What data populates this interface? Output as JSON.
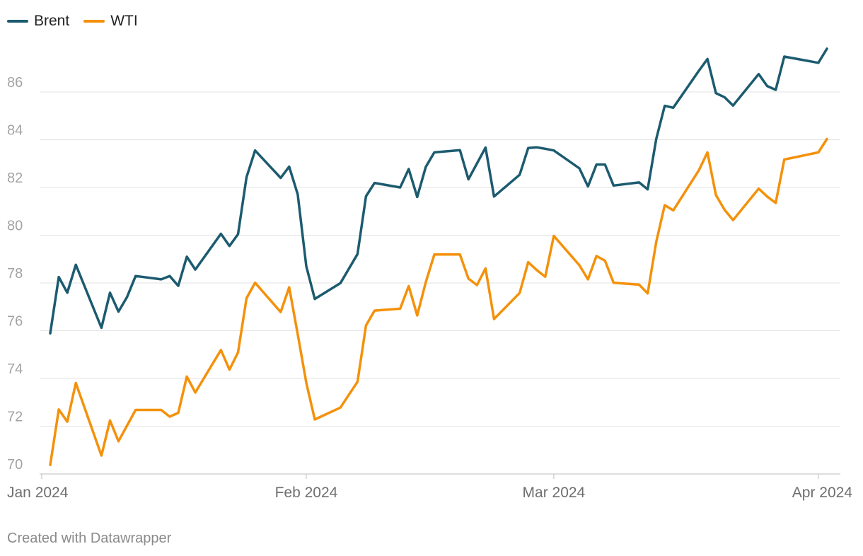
{
  "legend": [
    {
      "name": "Brent",
      "color": "#1c5b6f"
    },
    {
      "name": "WTI",
      "color": "#f4910a"
    }
  ],
  "footer": {
    "credit": "Created with Datawrapper"
  },
  "chart_data": {
    "type": "line",
    "title": "",
    "xlabel": "",
    "ylabel": "",
    "ylim": [
      70,
      88
    ],
    "yticks": [
      70,
      72,
      74,
      76,
      78,
      80,
      82,
      84,
      86
    ],
    "xlim": [
      "2024-01-01",
      "2024-04-02"
    ],
    "xticks": [
      {
        "date": "2024-01-01",
        "label": "Jan 2024"
      },
      {
        "date": "2024-02-01",
        "label": "Feb 2024"
      },
      {
        "date": "2024-03-01",
        "label": "Mar 2024"
      },
      {
        "date": "2024-04-01",
        "label": "Apr 2024"
      }
    ],
    "grid": true,
    "legend_position": "top-left",
    "series": [
      {
        "name": "Brent",
        "color": "#1c5b6f",
        "points": [
          [
            "2024-01-02",
            75.89
          ],
          [
            "2024-01-03",
            78.25
          ],
          [
            "2024-01-04",
            77.59
          ],
          [
            "2024-01-05",
            78.76
          ],
          [
            "2024-01-08",
            76.12
          ],
          [
            "2024-01-09",
            77.59
          ],
          [
            "2024-01-10",
            76.8
          ],
          [
            "2024-01-11",
            77.41
          ],
          [
            "2024-01-12",
            78.29
          ],
          [
            "2024-01-15",
            78.15
          ],
          [
            "2024-01-16",
            78.29
          ],
          [
            "2024-01-17",
            77.88
          ],
          [
            "2024-01-18",
            79.1
          ],
          [
            "2024-01-19",
            78.56
          ],
          [
            "2024-01-22",
            80.06
          ],
          [
            "2024-01-23",
            79.55
          ],
          [
            "2024-01-24",
            80.04
          ],
          [
            "2024-01-25",
            82.43
          ],
          [
            "2024-01-26",
            83.55
          ],
          [
            "2024-01-29",
            82.4
          ],
          [
            "2024-01-30",
            82.87
          ],
          [
            "2024-01-31",
            81.71
          ],
          [
            "2024-02-01",
            78.7
          ],
          [
            "2024-02-02",
            77.33
          ],
          [
            "2024-02-05",
            77.99
          ],
          [
            "2024-02-07",
            79.21
          ],
          [
            "2024-02-08",
            81.63
          ],
          [
            "2024-02-09",
            82.19
          ],
          [
            "2024-02-12",
            82.0
          ],
          [
            "2024-02-13",
            82.77
          ],
          [
            "2024-02-14",
            81.6
          ],
          [
            "2024-02-15",
            82.86
          ],
          [
            "2024-02-16",
            83.47
          ],
          [
            "2024-02-19",
            83.56
          ],
          [
            "2024-02-20",
            82.34
          ],
          [
            "2024-02-22",
            83.67
          ],
          [
            "2024-02-23",
            81.62
          ],
          [
            "2024-02-26",
            82.53
          ],
          [
            "2024-02-27",
            83.65
          ],
          [
            "2024-02-28",
            83.68
          ],
          [
            "2024-02-29",
            83.62
          ],
          [
            "2024-03-01",
            83.55
          ],
          [
            "2024-03-04",
            82.8
          ],
          [
            "2024-03-05",
            82.04
          ],
          [
            "2024-03-06",
            82.96
          ],
          [
            "2024-03-07",
            82.96
          ],
          [
            "2024-03-08",
            82.08
          ],
          [
            "2024-03-11",
            82.21
          ],
          [
            "2024-03-12",
            81.92
          ],
          [
            "2024-03-13",
            84.03
          ],
          [
            "2024-03-14",
            85.42
          ],
          [
            "2024-03-15",
            85.34
          ],
          [
            "2024-03-18",
            86.89
          ],
          [
            "2024-03-19",
            87.38
          ],
          [
            "2024-03-20",
            85.95
          ],
          [
            "2024-03-21",
            85.78
          ],
          [
            "2024-03-22",
            85.43
          ],
          [
            "2024-03-25",
            86.75
          ],
          [
            "2024-03-26",
            86.25
          ],
          [
            "2024-03-27",
            86.09
          ],
          [
            "2024-03-28",
            87.48
          ],
          [
            "2024-04-01",
            87.22
          ],
          [
            "2024-04-02",
            87.81
          ]
        ]
      },
      {
        "name": "WTI",
        "color": "#f4910a",
        "points": [
          [
            "2024-01-02",
            70.38
          ],
          [
            "2024-01-03",
            72.7
          ],
          [
            "2024-01-04",
            72.19
          ],
          [
            "2024-01-05",
            73.81
          ],
          [
            "2024-01-08",
            70.77
          ],
          [
            "2024-01-09",
            72.24
          ],
          [
            "2024-01-10",
            71.37
          ],
          [
            "2024-01-12",
            72.68
          ],
          [
            "2024-01-15",
            72.68
          ],
          [
            "2024-01-16",
            72.4
          ],
          [
            "2024-01-17",
            72.56
          ],
          [
            "2024-01-18",
            74.08
          ],
          [
            "2024-01-19",
            73.41
          ],
          [
            "2024-01-22",
            75.19
          ],
          [
            "2024-01-23",
            74.37
          ],
          [
            "2024-01-24",
            75.09
          ],
          [
            "2024-01-25",
            77.36
          ],
          [
            "2024-01-26",
            78.01
          ],
          [
            "2024-01-29",
            76.78
          ],
          [
            "2024-01-30",
            77.82
          ],
          [
            "2024-01-31",
            75.85
          ],
          [
            "2024-02-01",
            73.82
          ],
          [
            "2024-02-02",
            72.28
          ],
          [
            "2024-02-05",
            72.78
          ],
          [
            "2024-02-07",
            73.86
          ],
          [
            "2024-02-08",
            76.22
          ],
          [
            "2024-02-09",
            76.84
          ],
          [
            "2024-02-12",
            76.92
          ],
          [
            "2024-02-13",
            77.87
          ],
          [
            "2024-02-14",
            76.64
          ],
          [
            "2024-02-15",
            78.03
          ],
          [
            "2024-02-16",
            79.19
          ],
          [
            "2024-02-19",
            79.19
          ],
          [
            "2024-02-20",
            78.18
          ],
          [
            "2024-02-21",
            77.91
          ],
          [
            "2024-02-22",
            78.61
          ],
          [
            "2024-02-23",
            76.49
          ],
          [
            "2024-02-26",
            77.58
          ],
          [
            "2024-02-27",
            78.87
          ],
          [
            "2024-02-28",
            78.54
          ],
          [
            "2024-02-29",
            78.26
          ],
          [
            "2024-03-01",
            79.97
          ],
          [
            "2024-03-04",
            78.74
          ],
          [
            "2024-03-05",
            78.15
          ],
          [
            "2024-03-06",
            79.13
          ],
          [
            "2024-03-07",
            78.93
          ],
          [
            "2024-03-08",
            78.01
          ],
          [
            "2024-03-11",
            77.93
          ],
          [
            "2024-03-12",
            77.56
          ],
          [
            "2024-03-13",
            79.72
          ],
          [
            "2024-03-14",
            81.26
          ],
          [
            "2024-03-15",
            81.04
          ],
          [
            "2024-03-18",
            82.72
          ],
          [
            "2024-03-19",
            83.47
          ],
          [
            "2024-03-20",
            81.68
          ],
          [
            "2024-03-21",
            81.07
          ],
          [
            "2024-03-22",
            80.63
          ],
          [
            "2024-03-25",
            81.95
          ],
          [
            "2024-03-26",
            81.62
          ],
          [
            "2024-03-27",
            81.35
          ],
          [
            "2024-03-28",
            83.17
          ],
          [
            "2024-04-01",
            83.47
          ],
          [
            "2024-04-02",
            84.03
          ]
        ]
      }
    ]
  }
}
